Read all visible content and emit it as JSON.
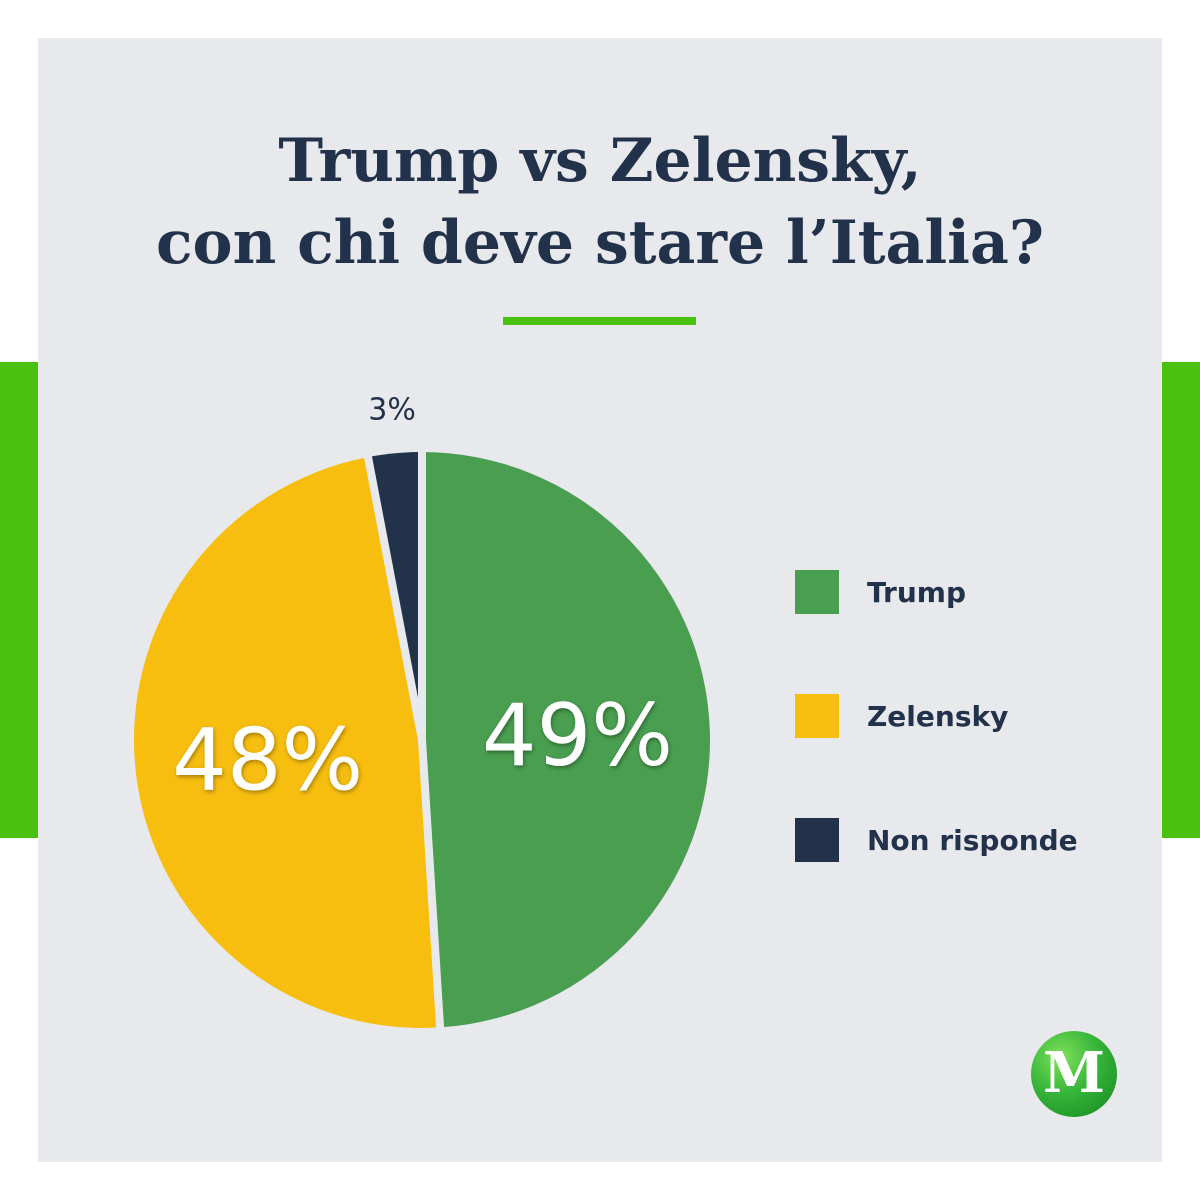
{
  "title": {
    "line1": "Trump vs Zelensky,",
    "line2": "con chi deve stare l’Italia?"
  },
  "colors": {
    "background": "#ffffff",
    "panel": "#e8e9ed",
    "accent_green": "#49c10d",
    "title_text": "#22324b",
    "legend_text": "#22324b",
    "trump": "#499e50",
    "zelensky": "#f7be10",
    "non_risponde": "#22324b"
  },
  "logo": {
    "letter": "M",
    "icon": "logo-m-icon"
  },
  "chart_data": {
    "type": "pie",
    "title": "Trump vs Zelensky, con chi deve stare l’Italia?",
    "legend_position": "right",
    "start": "top",
    "direction": "clockwise",
    "slices": [
      {
        "label": "Trump",
        "value": 49,
        "display": "49%",
        "color": "#499e50"
      },
      {
        "label": "Zelensky",
        "value": 48,
        "display": "48%",
        "color": "#f7be10"
      },
      {
        "label": "Non risponde",
        "value": 3,
        "display": "3%",
        "color": "#22324b"
      }
    ]
  }
}
